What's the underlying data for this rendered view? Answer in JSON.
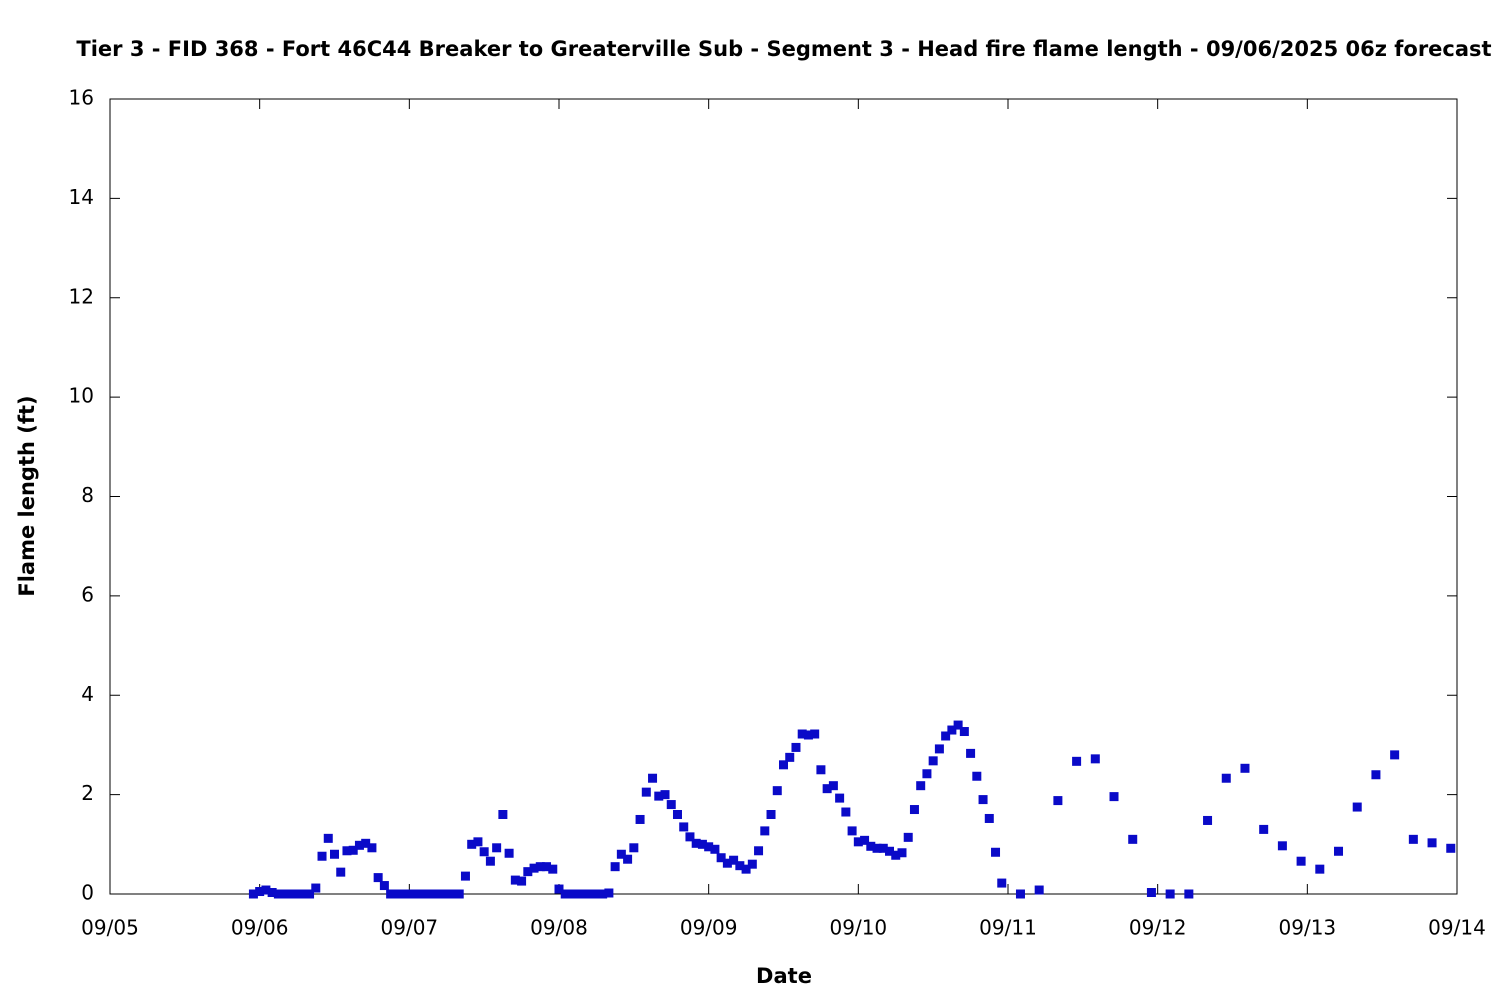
{
  "chart_data": {
    "type": "scatter",
    "title": "Tier 3 - FID 368 - Fort 46C44 Breaker to Greaterville Sub - Segment 3 - Head fire flame length - 09/06/2025 06z forecast",
    "x_label": "Date",
    "y_label": "Flame length (ft)",
    "color": "#0a0ac8",
    "x": [
      23,
      24,
      25,
      26,
      27,
      28,
      29,
      30,
      31,
      32,
      33,
      34,
      35,
      36,
      37,
      38,
      39,
      40,
      41,
      42,
      43,
      44,
      45,
      46,
      47,
      48,
      49,
      50,
      51,
      52,
      53,
      54,
      55,
      56,
      57,
      58,
      59,
      60,
      61,
      62,
      63,
      64,
      65,
      66,
      67,
      68,
      69,
      70,
      71,
      72,
      73,
      74,
      75,
      76,
      77,
      78,
      79,
      80,
      81,
      82,
      83,
      84,
      85,
      86,
      87,
      88,
      89,
      90,
      91,
      92,
      93,
      94,
      95,
      96,
      97,
      98,
      99,
      100,
      101,
      102,
      103,
      104,
      105,
      106,
      107,
      108,
      109,
      110,
      111,
      112,
      113,
      114,
      115,
      116,
      117,
      118,
      119,
      120,
      121,
      122,
      123,
      124,
      125,
      126,
      127,
      128,
      129,
      130,
      131,
      132,
      133,
      134,
      135,
      136,
      137,
      138,
      139,
      140,
      141,
      142,
      143,
      146,
      149,
      152,
      155,
      158,
      161,
      164,
      167,
      170,
      173,
      176,
      179,
      182,
      185,
      188,
      191,
      194,
      197,
      200,
      203,
      206,
      209,
      212,
      215
    ],
    "values": [
      0,
      0.05,
      0.08,
      0.03,
      0,
      0,
      0,
      0,
      0,
      0,
      0.12,
      0.76,
      1.12,
      0.8,
      0.44,
      0.87,
      0.88,
      0.98,
      1.02,
      0.93,
      0.33,
      0.17,
      0,
      0,
      0,
      0,
      0,
      0,
      0,
      0,
      0,
      0,
      0,
      0,
      0.36,
      1.0,
      1.05,
      0.85,
      0.66,
      0.93,
      1.6,
      0.82,
      0.28,
      0.26,
      0.45,
      0.52,
      0.55,
      0.55,
      0.5,
      0.1,
      0,
      0,
      0,
      0,
      0,
      0,
      0,
      0.02,
      0.55,
      0.8,
      0.7,
      0.93,
      1.5,
      2.05,
      2.33,
      1.97,
      2.0,
      1.8,
      1.6,
      1.35,
      1.15,
      1.02,
      1.0,
      0.95,
      0.9,
      0.73,
      0.62,
      0.68,
      0.57,
      0.5,
      0.6,
      0.87,
      1.27,
      1.6,
      2.08,
      2.6,
      2.75,
      2.95,
      3.22,
      3.2,
      3.22,
      2.5,
      2.12,
      2.18,
      1.93,
      1.65,
      1.27,
      1.05,
      1.08,
      0.96,
      0.92,
      0.92,
      0.86,
      0.78,
      0.83,
      1.14,
      1.7,
      2.18,
      2.42,
      2.68,
      2.92,
      3.18,
      3.3,
      3.4,
      3.27,
      2.83,
      2.37,
      1.9,
      1.52,
      0.84,
      0.22,
      0,
      0.08,
      1.88,
      2.67,
      2.72,
      1.96,
      1.1,
      0.03,
      0,
      0,
      1.48,
      2.33,
      2.53,
      1.3,
      0.97,
      0.66,
      0.5,
      0.86,
      1.75,
      2.4,
      2.8,
      1.1,
      1.03,
      0.92
    ],
    "xlim": [
      0,
      216
    ],
    "xticks": [
      {
        "value": 0,
        "label": "09/05"
      },
      {
        "value": 24,
        "label": "09/06"
      },
      {
        "value": 48,
        "label": "09/07"
      },
      {
        "value": 72,
        "label": "09/08"
      },
      {
        "value": 96,
        "label": "09/09"
      },
      {
        "value": 120,
        "label": "09/10"
      },
      {
        "value": 144,
        "label": "09/11"
      },
      {
        "value": 168,
        "label": "09/12"
      },
      {
        "value": 192,
        "label": "09/13"
      },
      {
        "value": 216,
        "label": "09/14"
      }
    ],
    "ylim": [
      0,
      16
    ],
    "yticks": [
      0,
      2,
      4,
      6,
      8,
      10,
      12,
      14,
      16
    ]
  }
}
